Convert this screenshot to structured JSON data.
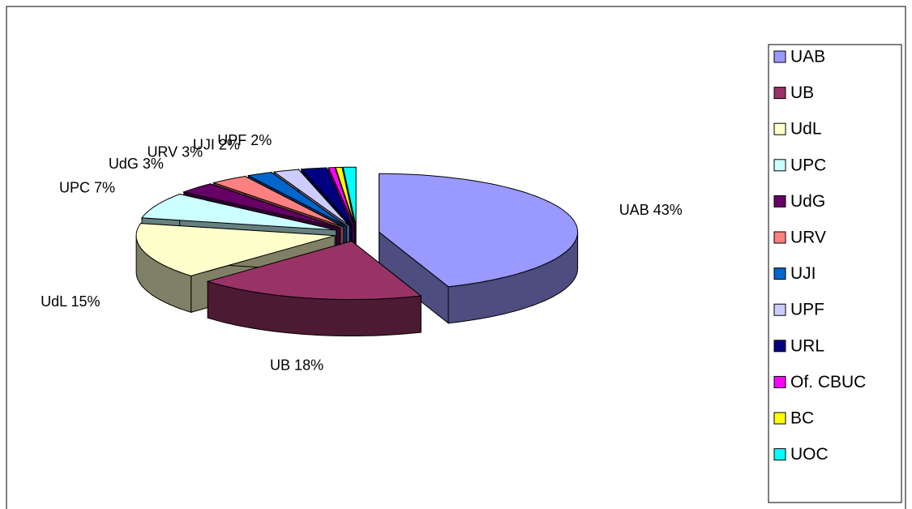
{
  "chart_data": {
    "type": "pie",
    "view": "3d-exploded",
    "categories": [
      "UAB",
      "UB",
      "UdL",
      "UPC",
      "UdG",
      "URV",
      "UJI",
      "UPF",
      "URL",
      "Of. CBUC",
      "BC",
      "UOC"
    ],
    "values": [
      43,
      18,
      15,
      7,
      3,
      3,
      2,
      2,
      2,
      0.5,
      0.5,
      1
    ],
    "value_labels": [
      "UAB 43%",
      "UB 18%",
      "UdL 15%",
      "UPC 7%",
      "UdG 3%",
      "URV 3%",
      "UJI 2%",
      "UPF 2%",
      null,
      null,
      null,
      null
    ],
    "colors": [
      "#9999ff",
      "#993366",
      "#ffffcc",
      "#ccffff",
      "#660066",
      "#ff8080",
      "#0066cc",
      "#ccccff",
      "#000080",
      "#ff00ff",
      "#ffff00",
      "#00ffff"
    ],
    "legend": "right"
  }
}
